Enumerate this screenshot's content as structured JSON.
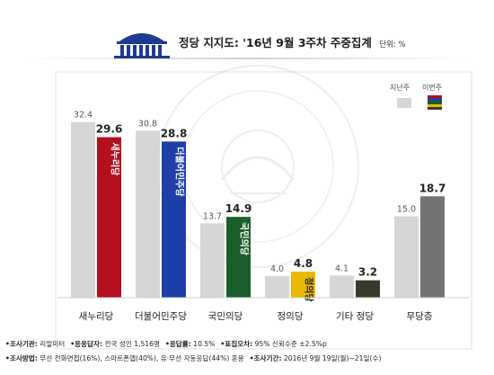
{
  "header": {
    "title": "정당 지지도: '16년 9월 3주차 주중집계",
    "unit": "단위: %"
  },
  "legend": {
    "previous_label": "지난주",
    "current_label": "이번주",
    "previous_color": "#d6d6d6",
    "current_colors": [
      "#b30f1d",
      "#1f3fa8",
      "#1a5e2b",
      "#e9b800",
      "#3b3a2a"
    ]
  },
  "colors": {
    "previous": "#d6d6d6",
    "saenuri": "#b30f1d",
    "minjoo": "#1f3fa8",
    "kookmin": "#1a5e2b",
    "justice": "#e9b800",
    "other": "#3b3a2a",
    "none": "#737373"
  },
  "chart_data": {
    "type": "bar",
    "title": "정당 지지도: '16년 9월 3주차 주중집계",
    "unit": "단위: %",
    "categories": [
      "새누리당",
      "더불어민주당",
      "국민의당",
      "정의당",
      "기타 정당",
      "무당층"
    ],
    "series": [
      {
        "name": "지난주",
        "values": [
          32.4,
          30.8,
          13.7,
          4.0,
          4.1,
          15.0
        ]
      },
      {
        "name": "이번주",
        "values": [
          29.6,
          28.8,
          14.9,
          4.8,
          3.2,
          18.7
        ]
      }
    ],
    "ylim": [
      0,
      35
    ],
    "grid": false,
    "legend_position": "top-right"
  },
  "bar_logos": [
    "새누리당",
    "더불어민주당",
    "국민의당",
    "정의당"
  ],
  "footnote": {
    "line1": [
      {
        "label": "•조사기관:",
        "value": "리얼미터"
      },
      {
        "label": "•응응답자:",
        "value": "전국 성인 1,516명"
      },
      {
        "label": "•응답률:",
        "value": "10.5%"
      },
      {
        "label": "•표집오차:",
        "value": "95% 신뢰수준 ±2.5%p"
      }
    ],
    "line2": [
      {
        "label": "•조사방법:",
        "value": "무선 전화면접(16%), 스마트폰앱(40%), 유·무선 자동응답(44%) 혼용"
      },
      {
        "label": "•조사기간:",
        "value": "2016년 9월 19일(월)~21일(수)"
      }
    ]
  }
}
